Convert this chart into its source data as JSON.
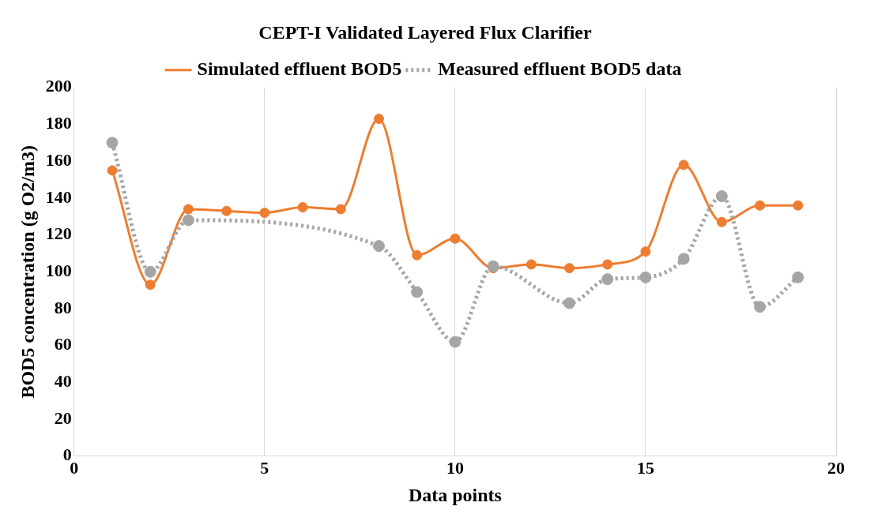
{
  "chart_data": {
    "type": "line",
    "title": "CEPT-I Validated Layered Flux Clarifier",
    "xlabel": "Data points",
    "ylabel": "BOD5 concentration (g O2/m3)",
    "x": [
      1,
      2,
      3,
      4,
      5,
      6,
      7,
      8,
      9,
      10,
      11,
      12,
      13,
      14,
      15,
      16,
      17,
      18,
      19
    ],
    "xlim": [
      0,
      20
    ],
    "xticks": [
      0,
      5,
      10,
      15,
      20
    ],
    "ylim": [
      0,
      200
    ],
    "yticks": [
      0,
      20,
      40,
      60,
      80,
      100,
      120,
      140,
      160,
      180,
      200
    ],
    "grid": "x",
    "legend": "top",
    "marker": "circle",
    "series": [
      {
        "name": "Simulated effluent BOD5",
        "color": "#ed7d31",
        "line_style": "solid",
        "values": [
          155,
          93,
          134,
          133,
          132,
          135,
          134,
          183,
          109,
          118,
          102,
          104,
          102,
          104,
          111,
          158,
          127,
          136,
          136
        ]
      },
      {
        "name": "Measured effluent BOD5 data",
        "color": "#a5a5a5",
        "line_style": "dotted",
        "values": [
          170,
          100,
          128,
          null,
          null,
          null,
          null,
          114,
          89,
          62,
          103,
          null,
          83,
          96,
          97,
          107,
          141,
          81,
          97
        ]
      }
    ]
  }
}
